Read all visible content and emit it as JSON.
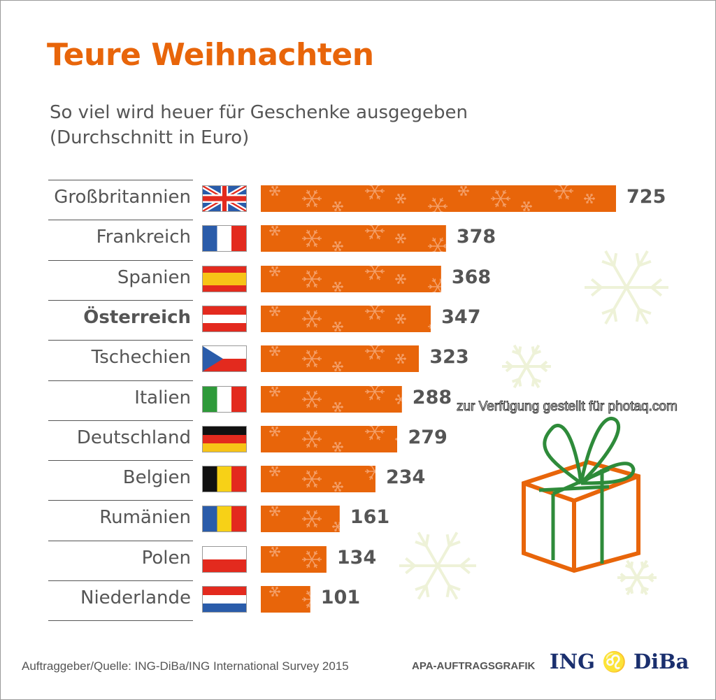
{
  "title": "Teure Weihnachten",
  "subtitle_line1": "So viel wird heuer für Geschenke ausgegeben",
  "subtitle_line2": "(Durchschnitt in Euro)",
  "watermark": "zur Verfügung gestellt für photaq.com",
  "footer": {
    "source": "Auftraggeber/Quelle: ING-DiBa/ING International Survey 2015",
    "apa": "APA-AUFTRAGSGRAFIK",
    "logo_left": "ING",
    "logo_right": "DiBa"
  },
  "colors": {
    "bar": "#e8650a",
    "title": "#e8650a",
    "text": "#555555",
    "snowflake": "#eef2d8",
    "ribbon": "#2e8b3a"
  },
  "chart_data": {
    "type": "bar",
    "orientation": "horizontal",
    "title": "Teure Weihnachten",
    "categories": [
      "Großbritannien",
      "Frankreich",
      "Spanien",
      "Österreich",
      "Tschechien",
      "Italien",
      "Deutschland",
      "Belgien",
      "Rumänien",
      "Polen",
      "Niederlande"
    ],
    "values": [
      725,
      378,
      368,
      347,
      323,
      288,
      279,
      234,
      161,
      134,
      101
    ],
    "highlight": "Österreich",
    "flags": [
      "uk",
      "fr",
      "es",
      "at",
      "cz",
      "it",
      "de",
      "be",
      "ro",
      "pl",
      "nl"
    ],
    "data_labels": true,
    "grid": false
  }
}
